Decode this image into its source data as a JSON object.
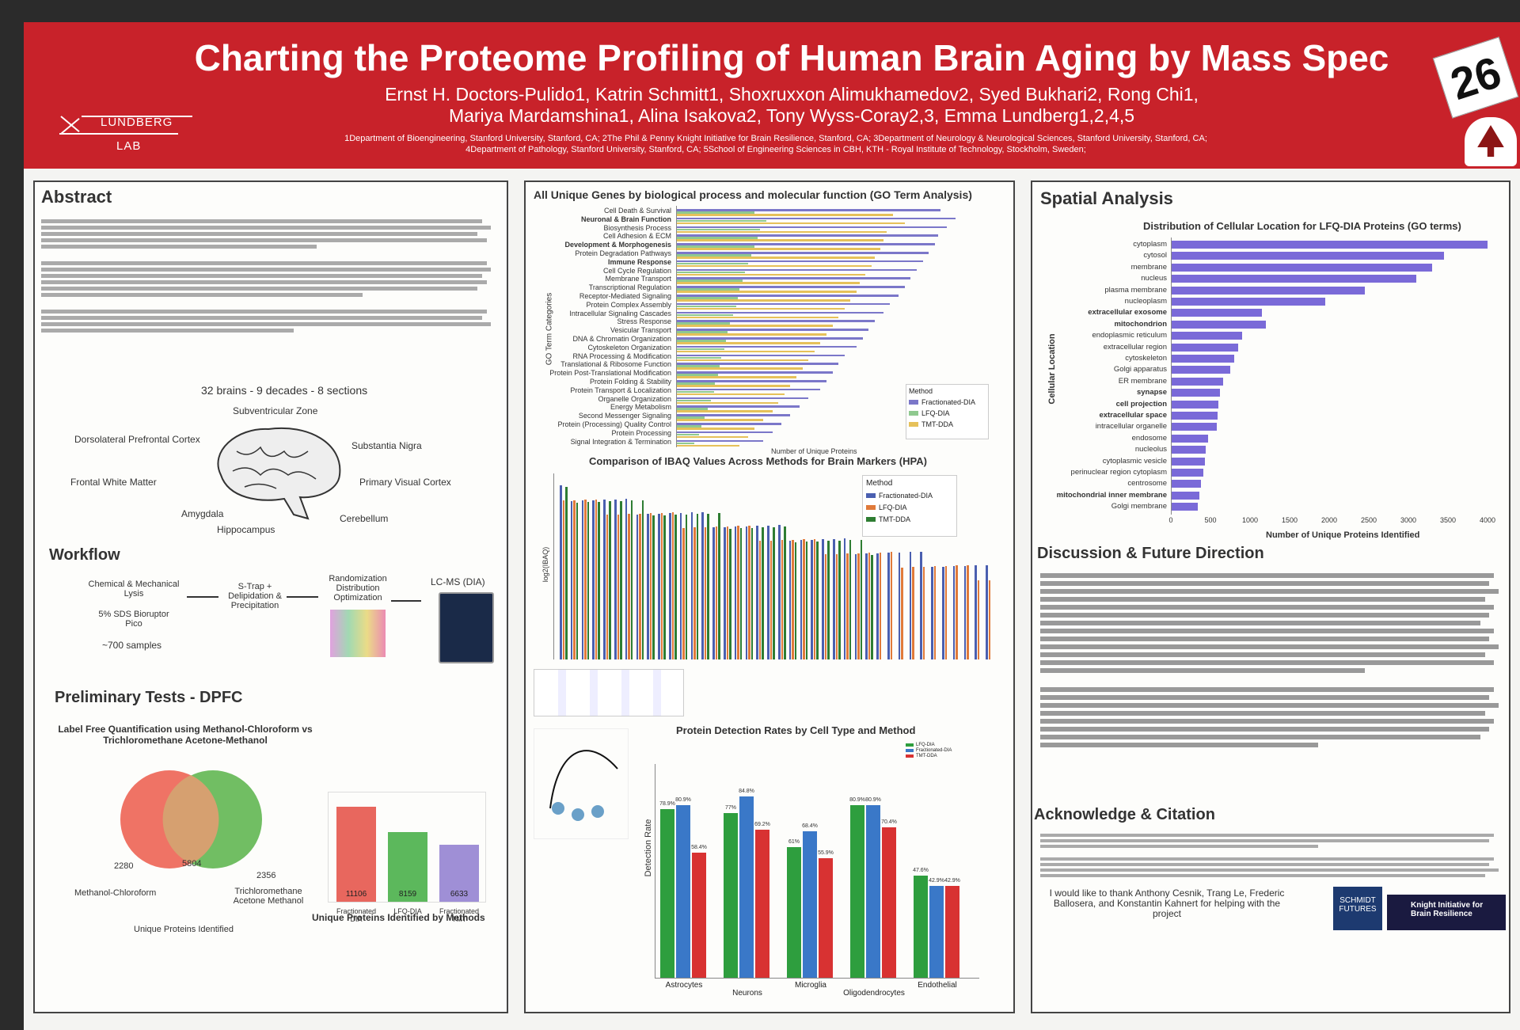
{
  "header": {
    "lab_line1": "LUNDBERG",
    "lab_line2": "LAB",
    "title": "Charting the Proteome Profiling of Human Brain Aging by Mass Spec",
    "authors_line1": "Ernst H. Doctors-Pulido1, Katrin Schmitt1, Shoxruxxon Alimukhamedov2, Syed Bukhari2, Rong Chi1,",
    "authors_line2": "Mariya Mardamshina1, Alina Isakova2, Tony Wyss-Coray2,3, Emma Lundberg1,2,4,5",
    "affil_line1": "1Department of Bioengineering, Stanford University, Stanford, CA; 2The Phil & Penny Knight Initiative for Brain Resilience, Stanford, CA; 3Department of Neurology & Neurological Sciences, Stanford University, Stanford, CA;",
    "affil_line2": "4Department of Pathology, Stanford University, Stanford, CA; 5School of Engineering Sciences in CBH, KTH - Royal Institute of Technology, Stockholm, Sweden;",
    "badge": "26"
  },
  "abstract": {
    "heading": "Abstract",
    "brain_caption": "32 brains - 9 decades - 8 sections",
    "regions": [
      "Subventricular Zone",
      "Dorsolateral Prefrontal Cortex",
      "Substantia Nigra",
      "Frontal White Matter",
      "Primary Visual Cortex",
      "Amygdala",
      "Cerebellum",
      "Hippocampus"
    ]
  },
  "workflow": {
    "heading": "Workflow",
    "step1": "Chemical & Mechanical Lysis",
    "step1_sub": "5% SDS Bioruptor Pico",
    "samples": "~700 samples",
    "step2": "S-Trap + Delipidation & Precipitation",
    "step3": "Randomization Distribution Optimization",
    "step4": "LC-MS (DIA)"
  },
  "prelim": {
    "heading": "Preliminary Tests - DPFC",
    "venn_title": "Label Free Quantification using Methanol-Chloroform vs Trichloromethane Acetone-Methanol",
    "venn_left": "2280",
    "venn_mid": "5804",
    "venn_right": "2356",
    "venn_left_label": "Methanol-Chloroform",
    "venn_right_label": "Trichloromethane Acetone Methanol",
    "venn_caption": "Unique Proteins Identified",
    "bars_caption": "Unique Proteins Identified by Methods"
  },
  "prelim_bars": {
    "categories": [
      "Fractionated DIA",
      "LFQ-DIA",
      "Fractionated TMT"
    ],
    "values": [
      11106,
      8159,
      6633
    ],
    "colors": [
      "#e8675e",
      "#5cb85c",
      "#9f8fd6"
    ]
  },
  "go": {
    "title": "All Unique Genes by biological process and molecular function (GO Term Analysis)",
    "ylabel": "GO Term Categories",
    "xlabel": "Number of Unique Proteins",
    "legend_title": "Method",
    "series_names": [
      "Fractionated-DIA",
      "LFQ-DIA",
      "TMT-DDA"
    ],
    "colors": [
      "#7b77c9",
      "#8fc98f",
      "#e6c15a"
    ],
    "categories": [
      "Cell Death & Survival",
      "Neuronal & Brain Function",
      "Biosynthesis Process",
      "Cell Adhesion & ECM",
      "Development & Morphogenesis",
      "Protein Degradation Pathways",
      "Immune Response",
      "Cell Cycle Regulation",
      "Membrane Transport",
      "Transcriptional Regulation",
      "Receptor-Mediated Signaling",
      "Protein Complex Assembly",
      "Intracellular Signaling Cascades",
      "Stress Response",
      "Vesicular Transport",
      "DNA & Chromatin Organization",
      "Cytoskeleton Organization",
      "RNA Processing & Modification",
      "Translational & Ribosome Function",
      "Protein Post-Translational Modification",
      "Protein Folding & Stability",
      "Protein Transport & Localization",
      "Organelle Organization",
      "Energy Metabolism",
      "Second Messenger Signaling",
      "Protein (Processing) Quality Control",
      "Protein Processing",
      "Signal Integration & Termination"
    ],
    "bold": [
      1,
      4,
      6
    ],
    "values": [
      [
        880,
        260,
        720
      ],
      [
        930,
        300,
        760
      ],
      [
        900,
        280,
        700
      ],
      [
        870,
        270,
        690
      ],
      [
        860,
        260,
        680
      ],
      [
        840,
        250,
        660
      ],
      [
        820,
        240,
        650
      ],
      [
        800,
        230,
        630
      ],
      [
        780,
        220,
        610
      ],
      [
        760,
        210,
        600
      ],
      [
        740,
        205,
        580
      ],
      [
        710,
        200,
        560
      ],
      [
        690,
        190,
        540
      ],
      [
        660,
        180,
        520
      ],
      [
        640,
        170,
        500
      ],
      [
        620,
        165,
        480
      ],
      [
        600,
        160,
        460
      ],
      [
        560,
        150,
        440
      ],
      [
        540,
        145,
        420
      ],
      [
        520,
        140,
        400
      ],
      [
        500,
        130,
        380
      ],
      [
        480,
        125,
        360
      ],
      [
        440,
        115,
        340
      ],
      [
        410,
        105,
        320
      ],
      [
        380,
        95,
        290
      ],
      [
        350,
        85,
        260
      ],
      [
        320,
        75,
        240
      ],
      [
        290,
        60,
        210
      ]
    ]
  },
  "chart_data": [
    {
      "type": "bar",
      "title": "Distribution of Cellular Location for LFQ-DIA Proteins (GO terms)",
      "xlabel": "Number of Unique Proteins Identified",
      "ylabel": "Cellular Location",
      "xlim": [
        0,
        4000
      ],
      "ticks": [
        0,
        500,
        1000,
        1500,
        2000,
        2500,
        3000,
        3500,
        4000
      ],
      "categories": [
        "cytoplasm",
        "cytosol",
        "membrane",
        "nucleus",
        "plasma membrane",
        "nucleoplasm",
        "extracellular exosome",
        "mitochondrion",
        "endoplasmic reticulum",
        "extracellular region",
        "cytoskeleton",
        "Golgi apparatus",
        "ER membrane",
        "synapse",
        "cell projection",
        "extracellular space",
        "intracellular organelle",
        "endosome",
        "nucleolus",
        "cytoplasmic vesicle",
        "perinuclear region cytoplasm",
        "centrosome",
        "mitochondrial inner membrane",
        "Golgi membrane"
      ],
      "values": [
        4100,
        3450,
        3300,
        3100,
        2450,
        1950,
        1150,
        1200,
        900,
        850,
        800,
        750,
        660,
        620,
        600,
        590,
        580,
        470,
        440,
        430,
        410,
        380,
        360,
        340
      ],
      "bold": [
        6,
        7,
        13,
        14,
        15,
        22
      ]
    },
    {
      "type": "bar",
      "title": "Comparison of IBAQ Values Across Methods for Brain Markers (HPA)",
      "ylabel": "log2(IBAQ)",
      "legend_title": "Method",
      "series": [
        {
          "name": "Fractionated-DIA",
          "color": "#4a5fb0"
        },
        {
          "name": "LFQ-DIA",
          "color": "#e07a3a"
        },
        {
          "name": "TMT-DDA",
          "color": "#2e7d32"
        }
      ]
    },
    {
      "type": "bar",
      "title": "Protein Detection Rates by Cell Type and Method",
      "ylabel": "Detection Rate",
      "categories": [
        "Astrocytes",
        "Neurons",
        "Microglia",
        "Oligodendrocytes",
        "Endothelial"
      ],
      "series": [
        {
          "name": "LFQ-DIA",
          "color": "#2e9e3e",
          "values": [
            78.9,
            77.0,
            61.0,
            80.9,
            47.6
          ]
        },
        {
          "name": "Fractionated-DIA",
          "color": "#3a78c8",
          "values": [
            80.9,
            84.8,
            68.4,
            80.9,
            42.9
          ]
        },
        {
          "name": "TMT-DDA",
          "color": "#d83232",
          "values": [
            58.4,
            69.2,
            55.9,
            70.4,
            42.9
          ]
        }
      ]
    }
  ],
  "spatial": {
    "heading": "Spatial Analysis"
  },
  "discussion": {
    "heading": "Discussion & Future Direction"
  },
  "ack": {
    "heading": "Acknowledge & Citation",
    "thanks": "I would like to thank Anthony Cesnik, Trang Le, Frederic Ballosera, and Konstantin Kahnert for helping with the project",
    "sponsor1": "SCHMIDT FUTURES",
    "sponsor2": "Knight Initiative for Brain Resilience"
  }
}
